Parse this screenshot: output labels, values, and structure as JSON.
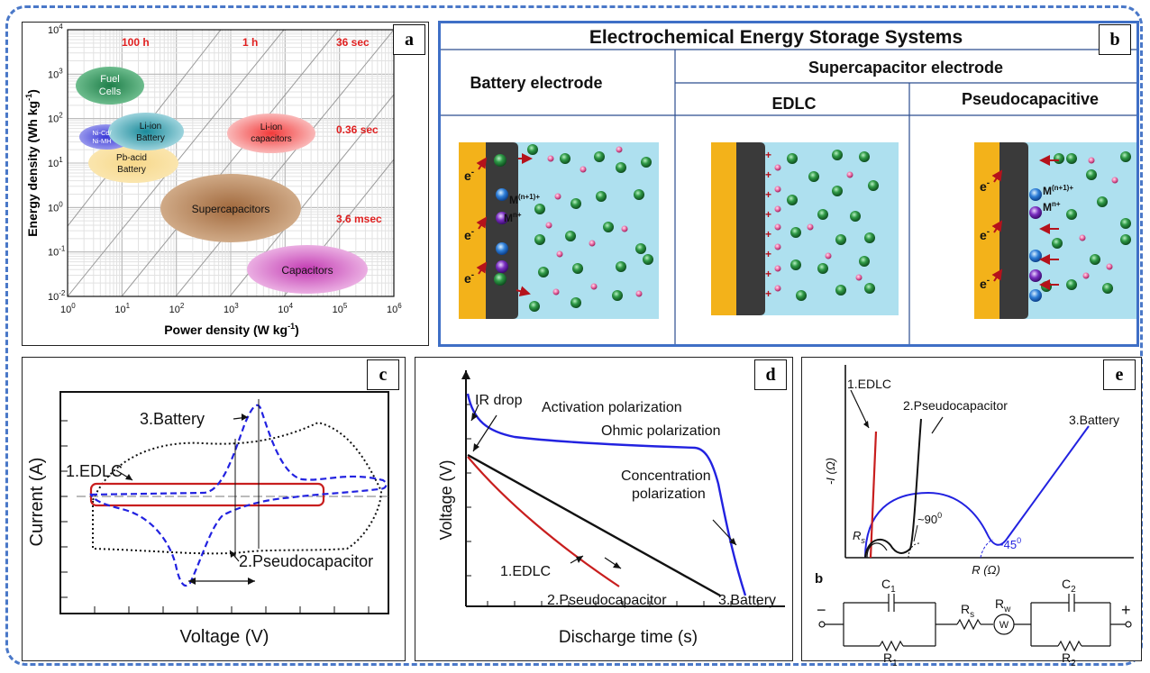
{
  "colors": {
    "frame_dash": "#4a78c8",
    "panel_b_border": "#3f6fc6",
    "electrode_gold": "#f3b21a",
    "electrode_dark": "#3a3a3a",
    "electrolyte": "#aee0ef",
    "red_label": "#e02020",
    "edlc_red": "#c81e1e",
    "battery_blue": "#2222e0",
    "pseudo_black": "#111111"
  },
  "panel_a": {
    "tag": "a",
    "xlabel": "Power density (W kg",
    "xlabel_sup": "-1",
    "xlabel_end": ")",
    "ylabel": "Energy density (Wh kg",
    "ylabel_sup": "-1",
    "ylabel_end": ")",
    "x_ticks": [
      {
        "base": "10",
        "exp": "0"
      },
      {
        "base": "10",
        "exp": "1"
      },
      {
        "base": "10",
        "exp": "2"
      },
      {
        "base": "10",
        "exp": "3"
      },
      {
        "base": "10",
        "exp": "4"
      },
      {
        "base": "10",
        "exp": "5"
      },
      {
        "base": "10",
        "exp": "6"
      }
    ],
    "y_ticks": [
      {
        "base": "10",
        "exp": "-2"
      },
      {
        "base": "10",
        "exp": "-1"
      },
      {
        "base": "10",
        "exp": "0"
      },
      {
        "base": "10",
        "exp": "1"
      },
      {
        "base": "10",
        "exp": "2"
      },
      {
        "base": "10",
        "exp": "3"
      },
      {
        "base": "10",
        "exp": "4"
      }
    ],
    "time_labels": [
      "100 h",
      "1 h",
      "36 sec",
      "0.36 sec",
      "3.6 msec"
    ],
    "regions": {
      "fuel_cells": [
        "Fuel",
        "Cells"
      ],
      "nicd": [
        "Ni-Cd/",
        "Ni-MH"
      ],
      "liion_battery": [
        "Li-ion",
        "Battery"
      ],
      "pb_acid": [
        "Pb-acid",
        "Battery"
      ],
      "liion_caps": [
        "Li-ion",
        "capacitors"
      ],
      "supercaps": "Supercapacitors",
      "capacitors": "Capacitors"
    }
  },
  "panel_b": {
    "tag": "b",
    "title": "Electrochemical Energy Storage Systems",
    "battery_header": "Battery electrode",
    "super_header": "Supercapacitor electrode",
    "edlc_header": "EDLC",
    "pseudo_header": "Pseudocapacitive",
    "electron": "e",
    "electron_sup": "-",
    "ion_high": "M",
    "ion_high_sup": "(n+1)+",
    "ion_low": "M",
    "ion_low_sup": "n+"
  },
  "panel_c": {
    "tag": "c",
    "ylabel": "Current (A)",
    "xlabel": "Voltage (V)",
    "label_battery": "3.Battery",
    "label_edlc": "1.EDLC",
    "label_pseudo": "2.Pseudocapacitor"
  },
  "panel_d": {
    "tag": "d",
    "ylabel": "Voltage (V)",
    "xlabel": "Discharge time (s)",
    "ir_drop": "IR drop",
    "activation": "Activation polarization",
    "ohmic": "Ohmic polarization",
    "concentration": [
      "Concentration",
      "polarization"
    ],
    "label_edlc": "1.EDLC",
    "label_pseudo": "2.Pseudocapacitor",
    "label_battery": "3.Battery"
  },
  "panel_e": {
    "tag": "e",
    "ylabel": "-I (Ω)",
    "xlabel": "R (Ω)",
    "label_edlc": "1.EDLC",
    "label_pseudo": "2.Pseudocapacitor",
    "label_battery": "3.Battery",
    "rs": "R",
    "rs_sub": "s",
    "angle90": "~90",
    "angle90_sup": "0",
    "angle45": "~45",
    "angle45_sup": "0",
    "circuit": {
      "label": "b",
      "minus": "−",
      "plus": "+",
      "c1": "C",
      "c1_sub": "1",
      "r1": "R",
      "r1_sub": "1",
      "rs": "R",
      "rs_sub": "s",
      "rw": "R",
      "rw_sub": "w",
      "w": "W",
      "c2": "C",
      "c2_sub": "2",
      "r2": "R",
      "r2_sub": "2"
    }
  }
}
